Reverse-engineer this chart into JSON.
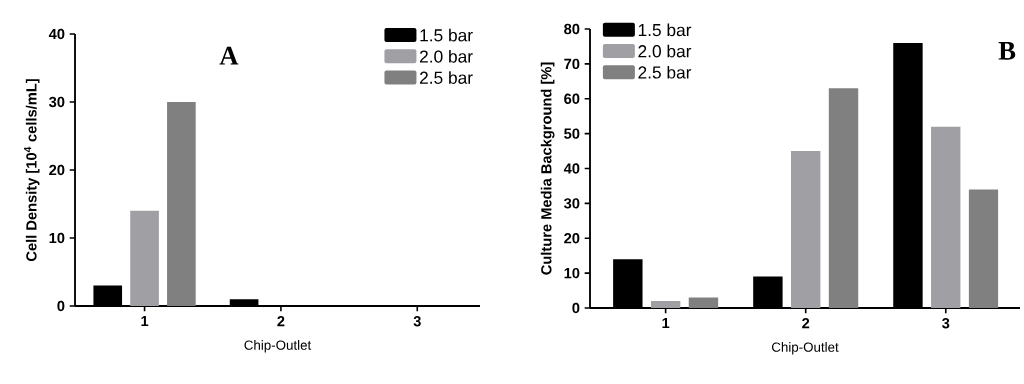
{
  "chart_data": [
    {
      "type": "bar",
      "annotations": [
        "A"
      ],
      "ylabel": "Cell Density [10$^{4}$ cells/mL]",
      "xlabel": "Chip-Outlet",
      "categories": [
        "1",
        "2",
        "3"
      ],
      "series": [
        {
          "name": "1.5 bar",
          "color": "#000000",
          "values": [
            3,
            1,
            0
          ]
        },
        {
          "name": "2.0 bar",
          "color": "#a0a0a4",
          "values": [
            14,
            0,
            0
          ]
        },
        {
          "name": "2.5 bar",
          "color": "#808080",
          "values": [
            30,
            0,
            0
          ]
        }
      ],
      "ylim": [
        0,
        40
      ],
      "yticks": [
        0,
        10,
        20,
        30,
        40
      ],
      "legend": "top right"
    },
    {
      "type": "bar",
      "annotations": [
        "B"
      ],
      "ylabel": "Culture Media Background [%]",
      "xlabel": "Chip-Outlet",
      "categories": [
        "1",
        "2",
        "3"
      ],
      "series": [
        {
          "name": "1.5 bar",
          "color": "#000000",
          "values": [
            14,
            9,
            76
          ]
        },
        {
          "name": "2.0 bar",
          "color": "#a0a0a4",
          "values": [
            2,
            45,
            52
          ]
        },
        {
          "name": "2.5 bar",
          "color": "#808080",
          "values": [
            3,
            63,
            34
          ]
        }
      ],
      "ylim": [
        0,
        80
      ],
      "yticks": [
        0,
        10,
        20,
        30,
        40,
        50,
        60,
        70,
        80
      ],
      "legend": "top left"
    }
  ]
}
